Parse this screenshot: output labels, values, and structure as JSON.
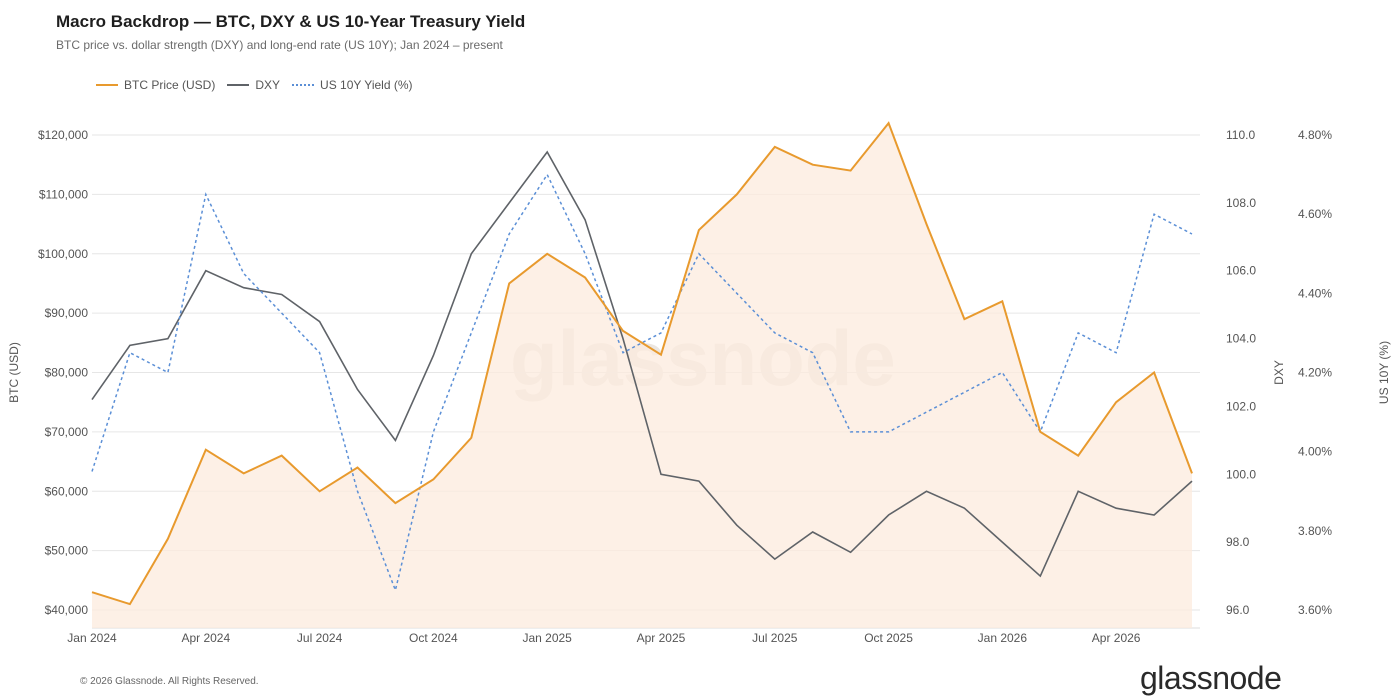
{
  "title": "Macro Backdrop — BTC, DXY & US 10-Year Treasury Yield",
  "subtitle": "BTC price vs. dollar strength (DXY) and long-end rate (US 10Y); Jan 2024 – present",
  "footer": {
    "copyright": "© 2026 Glassnode. All Rights Reserved.",
    "brand": "glassnode",
    "watermark": "glassnode"
  },
  "colors": {
    "btc": "#E89A2E",
    "btc_fill": "#FCEBDD",
    "dxy": "#5f6368",
    "yield": "#5B8FD6",
    "grid": "#e6e6e6"
  },
  "chart_data": {
    "type": "line",
    "x_ticks": [
      "Jan 2024",
      "Apr 2024",
      "Jul 2024",
      "Oct 2024",
      "Jan 2025",
      "Apr 2025",
      "Jul 2025",
      "Oct 2025",
      "Jan 2026",
      "Apr 2026"
    ],
    "x": [
      "2024-01",
      "2024-02",
      "2024-03",
      "2024-04",
      "2024-05",
      "2024-06",
      "2024-07",
      "2024-08",
      "2024-09",
      "2024-10",
      "2024-11",
      "2024-12",
      "2025-01",
      "2025-02",
      "2025-03",
      "2025-04",
      "2025-05",
      "2025-06",
      "2025-07",
      "2025-08",
      "2025-09",
      "2025-10",
      "2025-11",
      "2025-12",
      "2026-01",
      "2026-02",
      "2026-03",
      "2026-04",
      "2026-05",
      "2026-06"
    ],
    "series": [
      {
        "name": "BTC Price (USD)",
        "axis": "left",
        "values": [
          43000,
          41000,
          52000,
          67000,
          63000,
          66000,
          60000,
          64000,
          58000,
          62000,
          69000,
          95000,
          100000,
          96000,
          87000,
          83000,
          104000,
          110000,
          118000,
          115000,
          114000,
          122000,
          105000,
          89000,
          92000,
          70000,
          66000,
          75000,
          80000,
          63000
        ]
      },
      {
        "name": "DXY",
        "axis": "right",
        "values": [
          102.2,
          103.8,
          104.0,
          106.0,
          105.5,
          105.3,
          104.5,
          102.5,
          101.0,
          103.5,
          106.5,
          108.0,
          109.5,
          107.5,
          104.0,
          100.0,
          99.8,
          98.5,
          97.5,
          98.3,
          97.7,
          98.8,
          99.5,
          99.0,
          98.0,
          97.0,
          99.5,
          99.0,
          98.8,
          99.8
        ]
      },
      {
        "name": "US 10Y Yield (%)",
        "axis": "far-right",
        "values": [
          3.95,
          4.25,
          4.2,
          4.65,
          4.45,
          4.35,
          4.25,
          3.9,
          3.65,
          4.05,
          4.3,
          4.55,
          4.7,
          4.5,
          4.25,
          4.3,
          4.5,
          4.4,
          4.3,
          4.25,
          4.05,
          4.05,
          4.1,
          4.15,
          4.2,
          4.05,
          4.3,
          4.25,
          4.6,
          4.55
        ]
      }
    ],
    "y_left": {
      "label": "BTC (USD)",
      "ticks": [
        "$40,000",
        "$50,000",
        "$60,000",
        "$70,000",
        "$80,000",
        "$90,000",
        "$100,000",
        "$110,000",
        "$120,000"
      ],
      "min": 40000,
      "max": 120000
    },
    "y_right": {
      "label": "DXY",
      "ticks": [
        "96.0",
        "98.0",
        "100.0",
        "102.0",
        "104.0",
        "106.0",
        "108.0",
        "110.0"
      ],
      "min": 96,
      "max": 110
    },
    "y_far_right": {
      "label": "US 10Y (%)",
      "ticks": [
        "3.60%",
        "3.80%",
        "4.00%",
        "4.20%",
        "4.40%",
        "4.60%",
        "4.80%"
      ],
      "min": 3.6,
      "max": 4.8
    },
    "legend_position": "top-left",
    "grid": true
  }
}
